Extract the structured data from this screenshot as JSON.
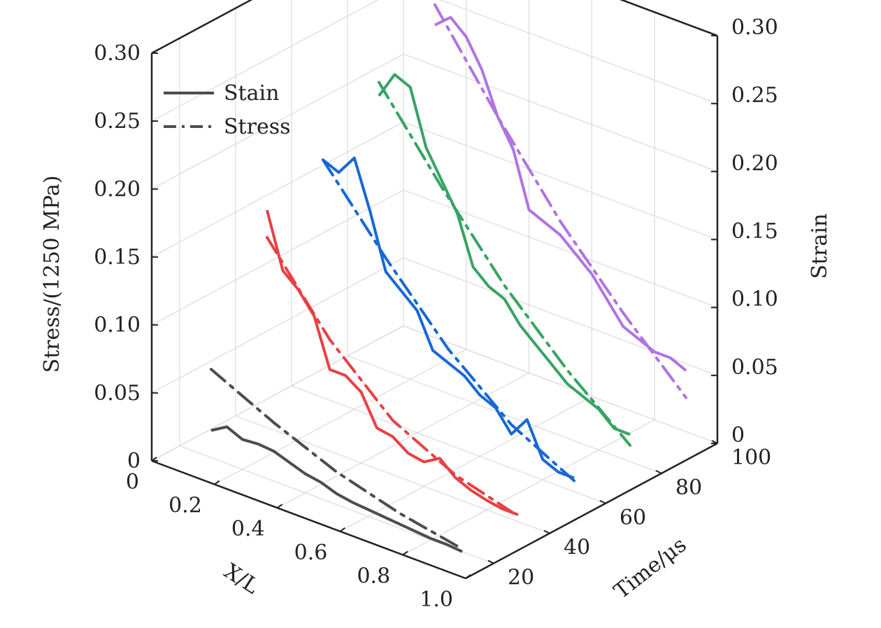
{
  "chart_data": {
    "type": "line",
    "projection": "3d",
    "yAxis": {
      "label": "Stress/(1250 MPa)",
      "ticks": [
        "0",
        "0.05",
        "0.10",
        "0.15",
        "0.20",
        "0.25",
        "0.30"
      ],
      "range": [
        0,
        0.3
      ]
    },
    "rightAxis": {
      "label": "Strain",
      "ticks": [
        "0",
        "0.05",
        "0.10",
        "0.15",
        "0.20",
        "0.25",
        "0.30"
      ],
      "range": [
        0,
        0.3
      ]
    },
    "xAxis": {
      "label": "X/L",
      "ticks": [
        "0",
        "0.2",
        "0.4",
        "0.6",
        "0.8",
        "1.0"
      ],
      "range": [
        0,
        1.0
      ]
    },
    "depthAxis": {
      "label": "Time/μs",
      "ticks": [
        "20",
        "40",
        "60",
        "80",
        "100"
      ],
      "range": [
        10,
        100
      ]
    },
    "grid": true,
    "legend": {
      "position": "top-left",
      "items": [
        {
          "label": "Stain",
          "style": "solid"
        },
        {
          "label": "Stress",
          "style": "dash-dot"
        }
      ]
    },
    "series": [
      {
        "time": 20,
        "color": "#4d4d4d",
        "strain": [
          [
            0.1,
            0.02
          ],
          [
            0.15,
            0.027
          ],
          [
            0.2,
            0.022
          ],
          [
            0.25,
            0.023
          ],
          [
            0.3,
            0.022
          ],
          [
            0.35,
            0.018
          ],
          [
            0.4,
            0.014
          ],
          [
            0.45,
            0.012
          ],
          [
            0.5,
            0.008
          ],
          [
            0.55,
            0.006
          ],
          [
            0.6,
            0.005
          ],
          [
            0.65,
            0.004
          ],
          [
            0.7,
            0.003
          ],
          [
            0.75,
            0.002
          ],
          [
            0.8,
            0.001
          ],
          [
            0.85,
            0.001
          ],
          [
            0.9,
            0.0
          ]
        ],
        "stress": [
          [
            0.1,
            0.065
          ],
          [
            0.3,
            0.043
          ],
          [
            0.5,
            0.024
          ],
          [
            0.7,
            0.011
          ],
          [
            0.9,
            0.002
          ]
        ]
      },
      {
        "time": 40,
        "color": "#e84143",
        "strain": [
          [
            0.1,
            0.16
          ],
          [
            0.15,
            0.12
          ],
          [
            0.2,
            0.11
          ],
          [
            0.25,
            0.095
          ],
          [
            0.3,
            0.06
          ],
          [
            0.35,
            0.06
          ],
          [
            0.4,
            0.052
          ],
          [
            0.45,
            0.03
          ],
          [
            0.5,
            0.028
          ],
          [
            0.55,
            0.02
          ],
          [
            0.6,
            0.018
          ],
          [
            0.65,
            0.025
          ],
          [
            0.7,
            0.015
          ],
          [
            0.75,
            0.01
          ],
          [
            0.8,
            0.007
          ],
          [
            0.85,
            0.005
          ],
          [
            0.9,
            0.005
          ]
        ],
        "stress": [
          [
            0.1,
            0.14
          ],
          [
            0.3,
            0.082
          ],
          [
            0.5,
            0.04
          ],
          [
            0.7,
            0.017
          ],
          [
            0.9,
            0.004
          ]
        ]
      },
      {
        "time": 60,
        "color": "#1768d4",
        "strain": [
          [
            0.1,
            0.175
          ],
          [
            0.15,
            0.17
          ],
          [
            0.2,
            0.185
          ],
          [
            0.25,
            0.15
          ],
          [
            0.3,
            0.11
          ],
          [
            0.35,
            0.1
          ],
          [
            0.4,
            0.09
          ],
          [
            0.45,
            0.065
          ],
          [
            0.5,
            0.06
          ],
          [
            0.55,
            0.055
          ],
          [
            0.6,
            0.045
          ],
          [
            0.65,
            0.04
          ],
          [
            0.7,
            0.025
          ],
          [
            0.75,
            0.04
          ],
          [
            0.8,
            0.015
          ],
          [
            0.85,
            0.01
          ],
          [
            0.9,
            0.01
          ]
        ],
        "stress": [
          [
            0.1,
            0.175
          ],
          [
            0.3,
            0.12
          ],
          [
            0.5,
            0.07
          ],
          [
            0.7,
            0.032
          ],
          [
            0.9,
            0.008
          ]
        ]
      },
      {
        "time": 80,
        "color": "#36a463",
        "strain": [
          [
            0.1,
            0.2
          ],
          [
            0.15,
            0.22
          ],
          [
            0.2,
            0.215
          ],
          [
            0.25,
            0.175
          ],
          [
            0.3,
            0.155
          ],
          [
            0.35,
            0.135
          ],
          [
            0.4,
            0.1
          ],
          [
            0.45,
            0.09
          ],
          [
            0.5,
            0.085
          ],
          [
            0.55,
            0.07
          ],
          [
            0.6,
            0.06
          ],
          [
            0.65,
            0.05
          ],
          [
            0.7,
            0.04
          ],
          [
            0.75,
            0.035
          ],
          [
            0.8,
            0.03
          ],
          [
            0.85,
            0.02
          ],
          [
            0.9,
            0.02
          ]
        ],
        "stress": [
          [
            0.1,
            0.21
          ],
          [
            0.3,
            0.15
          ],
          [
            0.5,
            0.095
          ],
          [
            0.7,
            0.05
          ],
          [
            0.9,
            0.012
          ]
        ]
      },
      {
        "time": 100,
        "color": "#b074e0",
        "strain": [
          [
            0.1,
            0.23
          ],
          [
            0.15,
            0.24
          ],
          [
            0.2,
            0.23
          ],
          [
            0.25,
            0.21
          ],
          [
            0.3,
            0.18
          ],
          [
            0.35,
            0.16
          ],
          [
            0.4,
            0.12
          ],
          [
            0.45,
            0.115
          ],
          [
            0.5,
            0.11
          ],
          [
            0.55,
            0.1
          ],
          [
            0.6,
            0.09
          ],
          [
            0.65,
            0.075
          ],
          [
            0.7,
            0.06
          ],
          [
            0.75,
            0.055
          ],
          [
            0.8,
            0.05
          ],
          [
            0.85,
            0.05
          ],
          [
            0.9,
            0.045
          ]
        ],
        "stress": [
          [
            0.1,
            0.245
          ],
          [
            0.3,
            0.18
          ],
          [
            0.5,
            0.12
          ],
          [
            0.7,
            0.07
          ],
          [
            0.9,
            0.025
          ]
        ]
      }
    ]
  }
}
